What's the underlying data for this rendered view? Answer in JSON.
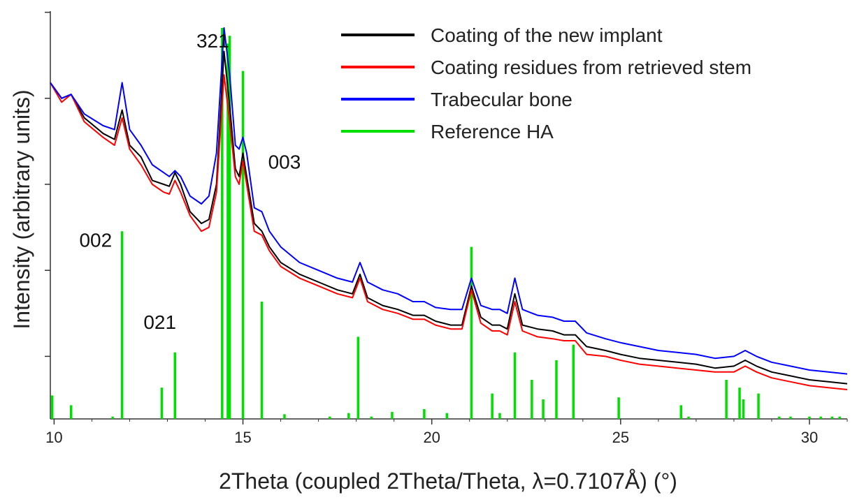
{
  "chart_data": {
    "type": "line",
    "title": "",
    "xlabel": "2Theta (coupled 2Theta/Theta, λ=0.7107Å) (°)",
    "ylabel": "Intensity (arbitrary units)",
    "xlim": [
      9.9,
      31.0
    ],
    "ylim": [
      0,
      100
    ],
    "xticks": [
      10,
      15,
      20,
      25,
      30
    ],
    "xtick_labels": [
      "10",
      "15",
      "20",
      "25",
      "30"
    ],
    "yticks": [
      16,
      38,
      60,
      82,
      104
    ],
    "legend_position": "top-right",
    "series": [
      {
        "name": "Coating of the new implant",
        "color": "#000000",
        "points": [
          [
            9.9,
            86
          ],
          [
            10.2,
            82
          ],
          [
            10.45,
            83
          ],
          [
            10.8,
            77
          ],
          [
            11.3,
            73
          ],
          [
            11.6,
            71.5
          ],
          [
            11.8,
            79
          ],
          [
            12.0,
            70
          ],
          [
            12.3,
            67
          ],
          [
            12.6,
            61
          ],
          [
            12.9,
            60
          ],
          [
            13.05,
            59.5
          ],
          [
            13.2,
            63
          ],
          [
            13.35,
            60
          ],
          [
            13.6,
            53
          ],
          [
            13.9,
            50
          ],
          [
            14.1,
            51
          ],
          [
            14.3,
            60
          ],
          [
            14.5,
            94
          ],
          [
            14.65,
            80
          ],
          [
            14.8,
            64
          ],
          [
            14.9,
            62
          ],
          [
            15.0,
            68
          ],
          [
            15.1,
            62
          ],
          [
            15.3,
            50
          ],
          [
            15.5,
            48
          ],
          [
            15.7,
            44
          ],
          [
            16.0,
            40
          ],
          [
            16.5,
            37
          ],
          [
            17.0,
            35
          ],
          [
            17.5,
            33
          ],
          [
            17.9,
            32
          ],
          [
            18.1,
            37
          ],
          [
            18.3,
            31
          ],
          [
            18.7,
            29
          ],
          [
            19.1,
            28
          ],
          [
            19.5,
            26.5
          ],
          [
            19.8,
            26.5
          ],
          [
            20.1,
            25
          ],
          [
            20.5,
            24
          ],
          [
            20.8,
            24
          ],
          [
            21.05,
            34
          ],
          [
            21.3,
            26
          ],
          [
            21.6,
            24
          ],
          [
            21.8,
            24
          ],
          [
            22.0,
            23
          ],
          [
            22.2,
            32
          ],
          [
            22.4,
            24
          ],
          [
            22.8,
            23
          ],
          [
            23.2,
            22.5
          ],
          [
            23.5,
            21.5
          ],
          [
            23.8,
            21.5
          ],
          [
            24.1,
            18.5
          ],
          [
            24.6,
            17.5
          ],
          [
            25.0,
            16.5
          ],
          [
            25.5,
            15.5
          ],
          [
            26.0,
            15
          ],
          [
            26.5,
            14.5
          ],
          [
            27.0,
            14
          ],
          [
            27.5,
            13
          ],
          [
            28.0,
            13.5
          ],
          [
            28.3,
            15
          ],
          [
            28.6,
            13.5
          ],
          [
            29.0,
            12
          ],
          [
            29.5,
            11
          ],
          [
            30.0,
            10
          ],
          [
            30.5,
            9.5
          ],
          [
            31.0,
            9
          ]
        ]
      },
      {
        "name": "Coating residues from retrieved stem",
        "color": "#ff0000",
        "points": [
          [
            9.9,
            86
          ],
          [
            10.2,
            81
          ],
          [
            10.45,
            83
          ],
          [
            10.8,
            76
          ],
          [
            11.3,
            72
          ],
          [
            11.6,
            70
          ],
          [
            11.8,
            77
          ],
          [
            12.0,
            69
          ],
          [
            12.3,
            65
          ],
          [
            12.6,
            60
          ],
          [
            12.9,
            58
          ],
          [
            13.05,
            57.5
          ],
          [
            13.2,
            61
          ],
          [
            13.35,
            58
          ],
          [
            13.6,
            52
          ],
          [
            13.9,
            48
          ],
          [
            14.1,
            49
          ],
          [
            14.3,
            58
          ],
          [
            14.5,
            88
          ],
          [
            14.65,
            76
          ],
          [
            14.8,
            62
          ],
          [
            14.9,
            60
          ],
          [
            15.0,
            66
          ],
          [
            15.1,
            60
          ],
          [
            15.3,
            48
          ],
          [
            15.5,
            47
          ],
          [
            15.7,
            43
          ],
          [
            16.0,
            39
          ],
          [
            16.5,
            36
          ],
          [
            17.0,
            34
          ],
          [
            17.5,
            32
          ],
          [
            17.9,
            31
          ],
          [
            18.1,
            36
          ],
          [
            18.3,
            30
          ],
          [
            18.7,
            28
          ],
          [
            19.1,
            27
          ],
          [
            19.5,
            25.5
          ],
          [
            19.8,
            25.5
          ],
          [
            20.1,
            24
          ],
          [
            20.5,
            23
          ],
          [
            20.8,
            23
          ],
          [
            21.05,
            33
          ],
          [
            21.3,
            24.5
          ],
          [
            21.6,
            22.5
          ],
          [
            21.8,
            22.5
          ],
          [
            22.0,
            21.5
          ],
          [
            22.2,
            30
          ],
          [
            22.4,
            22.5
          ],
          [
            22.8,
            21
          ],
          [
            23.2,
            20.5
          ],
          [
            23.5,
            20
          ],
          [
            23.8,
            20
          ],
          [
            24.1,
            16.5
          ],
          [
            24.6,
            16
          ],
          [
            25.0,
            15
          ],
          [
            25.5,
            14
          ],
          [
            26.0,
            13.5
          ],
          [
            26.5,
            13
          ],
          [
            27.0,
            12.5
          ],
          [
            27.5,
            12
          ],
          [
            28.0,
            12
          ],
          [
            28.3,
            13.5
          ],
          [
            28.6,
            12
          ],
          [
            29.0,
            10.5
          ],
          [
            29.5,
            9.5
          ],
          [
            30.0,
            8.5
          ],
          [
            30.5,
            8
          ],
          [
            31.0,
            7.5
          ]
        ]
      },
      {
        "name": "Trabecular bone",
        "color": "#0000ff",
        "points": [
          [
            9.9,
            86
          ],
          [
            10.2,
            82
          ],
          [
            10.45,
            83
          ],
          [
            10.8,
            78
          ],
          [
            11.3,
            75
          ],
          [
            11.6,
            74
          ],
          [
            11.8,
            86
          ],
          [
            12.0,
            74
          ],
          [
            12.3,
            70
          ],
          [
            12.6,
            65
          ],
          [
            12.9,
            63
          ],
          [
            13.05,
            62
          ],
          [
            13.2,
            63.5
          ],
          [
            13.35,
            62
          ],
          [
            13.6,
            57
          ],
          [
            13.9,
            55
          ],
          [
            14.1,
            57
          ],
          [
            14.3,
            68
          ],
          [
            14.5,
            100
          ],
          [
            14.65,
            88
          ],
          [
            14.8,
            70
          ],
          [
            14.9,
            69
          ],
          [
            15.0,
            72
          ],
          [
            15.1,
            68
          ],
          [
            15.3,
            54
          ],
          [
            15.5,
            53
          ],
          [
            15.7,
            48
          ],
          [
            16.0,
            44
          ],
          [
            16.5,
            40
          ],
          [
            17.0,
            38
          ],
          [
            17.5,
            36
          ],
          [
            17.9,
            35
          ],
          [
            18.1,
            40
          ],
          [
            18.3,
            35
          ],
          [
            18.7,
            33
          ],
          [
            19.1,
            32
          ],
          [
            19.5,
            30
          ],
          [
            19.8,
            30
          ],
          [
            20.1,
            28.5
          ],
          [
            20.5,
            28
          ],
          [
            20.8,
            28
          ],
          [
            21.05,
            36
          ],
          [
            21.3,
            29
          ],
          [
            21.6,
            28
          ],
          [
            21.8,
            28
          ],
          [
            22.0,
            27
          ],
          [
            22.2,
            36
          ],
          [
            22.4,
            28
          ],
          [
            22.8,
            26.5
          ],
          [
            23.2,
            26
          ],
          [
            23.5,
            25
          ],
          [
            23.8,
            25
          ],
          [
            24.1,
            22
          ],
          [
            24.6,
            20.5
          ],
          [
            25.0,
            19.5
          ],
          [
            25.5,
            18.5
          ],
          [
            26.0,
            17.5
          ],
          [
            26.5,
            17
          ],
          [
            27.0,
            16.5
          ],
          [
            27.5,
            15.5
          ],
          [
            28.0,
            16
          ],
          [
            28.3,
            17.5
          ],
          [
            28.6,
            16
          ],
          [
            29.0,
            14.5
          ],
          [
            29.5,
            13.5
          ],
          [
            30.0,
            12.5
          ],
          [
            30.5,
            12
          ],
          [
            31.0,
            11.5
          ]
        ]
      },
      {
        "name": "Reference HA",
        "color": "#00e000",
        "type": "sticks",
        "sticks": [
          [
            9.95,
            6
          ],
          [
            10.45,
            3.5
          ],
          [
            11.55,
            0.6
          ],
          [
            11.8,
            48
          ],
          [
            12.85,
            8
          ],
          [
            13.2,
            17
          ],
          [
            14.45,
            100
          ],
          [
            14.6,
            96
          ],
          [
            14.65,
            98
          ],
          [
            15.0,
            89
          ],
          [
            15.5,
            30
          ],
          [
            16.1,
            1.2
          ],
          [
            17.3,
            0.6
          ],
          [
            17.8,
            1.5
          ],
          [
            18.05,
            21
          ],
          [
            18.4,
            0.6
          ],
          [
            18.95,
            1.8
          ],
          [
            19.8,
            2.5
          ],
          [
            20.4,
            1.5
          ],
          [
            21.05,
            44
          ],
          [
            21.6,
            6.5
          ],
          [
            21.8,
            1.5
          ],
          [
            22.2,
            17
          ],
          [
            22.65,
            10
          ],
          [
            22.95,
            5
          ],
          [
            23.3,
            15
          ],
          [
            23.75,
            19
          ],
          [
            24.95,
            5.5
          ],
          [
            26.6,
            3.5
          ],
          [
            26.8,
            0.6
          ],
          [
            27.8,
            10
          ],
          [
            28.15,
            8
          ],
          [
            28.25,
            5
          ],
          [
            28.65,
            6.5
          ],
          [
            29.2,
            0.6
          ],
          [
            29.5,
            0.6
          ],
          [
            30.0,
            0.6
          ],
          [
            30.3,
            0.6
          ],
          [
            30.6,
            0.6
          ],
          [
            30.8,
            0.6
          ]
        ]
      }
    ],
    "annotations": [
      {
        "text": "321",
        "x": 14.2,
        "y": 95
      },
      {
        "text": "003",
        "x": 16.1,
        "y": 64
      },
      {
        "text": "002",
        "x": 11.1,
        "y": 44
      },
      {
        "text": "021",
        "x": 12.8,
        "y": 23
      }
    ]
  }
}
